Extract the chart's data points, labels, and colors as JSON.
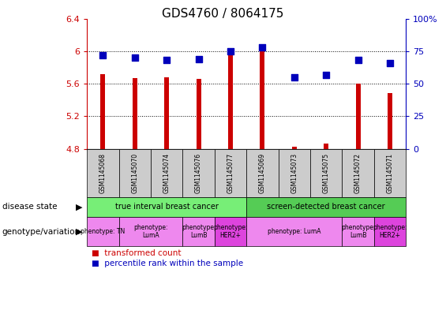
{
  "title": "GDS4760 / 8064175",
  "samples": [
    "GSM1145068",
    "GSM1145070",
    "GSM1145074",
    "GSM1145076",
    "GSM1145077",
    "GSM1145069",
    "GSM1145073",
    "GSM1145075",
    "GSM1145072",
    "GSM1145071"
  ],
  "red_values": [
    5.72,
    5.67,
    5.68,
    5.66,
    6.0,
    6.04,
    4.83,
    4.86,
    5.6,
    5.48
  ],
  "blue_values": [
    72,
    70,
    68,
    69,
    75,
    78,
    55,
    57,
    68,
    66
  ],
  "ylim_left": [
    4.8,
    6.4
  ],
  "ylim_right": [
    0,
    100
  ],
  "yticks_left": [
    4.8,
    5.2,
    5.6,
    6.0,
    6.4
  ],
  "yticks_right": [
    0,
    25,
    50,
    75,
    100
  ],
  "ytick_labels_left": [
    "4.8",
    "5.2",
    "5.6",
    "6",
    "6.4"
  ],
  "ytick_labels_right": [
    "0",
    "25",
    "50",
    "75",
    "100%"
  ],
  "red_color": "#cc0000",
  "blue_color": "#0000bb",
  "bar_width": 0.15,
  "dot_size": 30,
  "disease_state_row": {
    "group1": {
      "label": "true interval breast cancer",
      "start": 0,
      "end": 5,
      "color": "#77ee77"
    },
    "group2": {
      "label": "screen-detected breast cancer",
      "start": 5,
      "end": 10,
      "color": "#55cc55"
    }
  },
  "genotype_row": [
    {
      "label": "phenotype: TN",
      "start": 0,
      "end": 1,
      "color": "#ee88ee"
    },
    {
      "label": "phenotype:\nLumA",
      "start": 1,
      "end": 3,
      "color": "#ee88ee"
    },
    {
      "label": "phenotype:\nLumB",
      "start": 3,
      "end": 4,
      "color": "#ee88ee"
    },
    {
      "label": "phenotype:\nHER2+",
      "start": 4,
      "end": 5,
      "color": "#dd44dd"
    },
    {
      "label": "phenotype: LumA",
      "start": 5,
      "end": 8,
      "color": "#ee88ee"
    },
    {
      "label": "phenotype:\nLumB",
      "start": 8,
      "end": 9,
      "color": "#ee88ee"
    },
    {
      "label": "phenotype:\nHER2+",
      "start": 9,
      "end": 10,
      "color": "#dd44dd"
    }
  ],
  "left_label_color": "#cc0000",
  "right_label_color": "#0000bb",
  "bg_color": "#ffffff",
  "sample_box_color": "#cccccc",
  "grid_color": "#000000",
  "spine_color": "#000000"
}
